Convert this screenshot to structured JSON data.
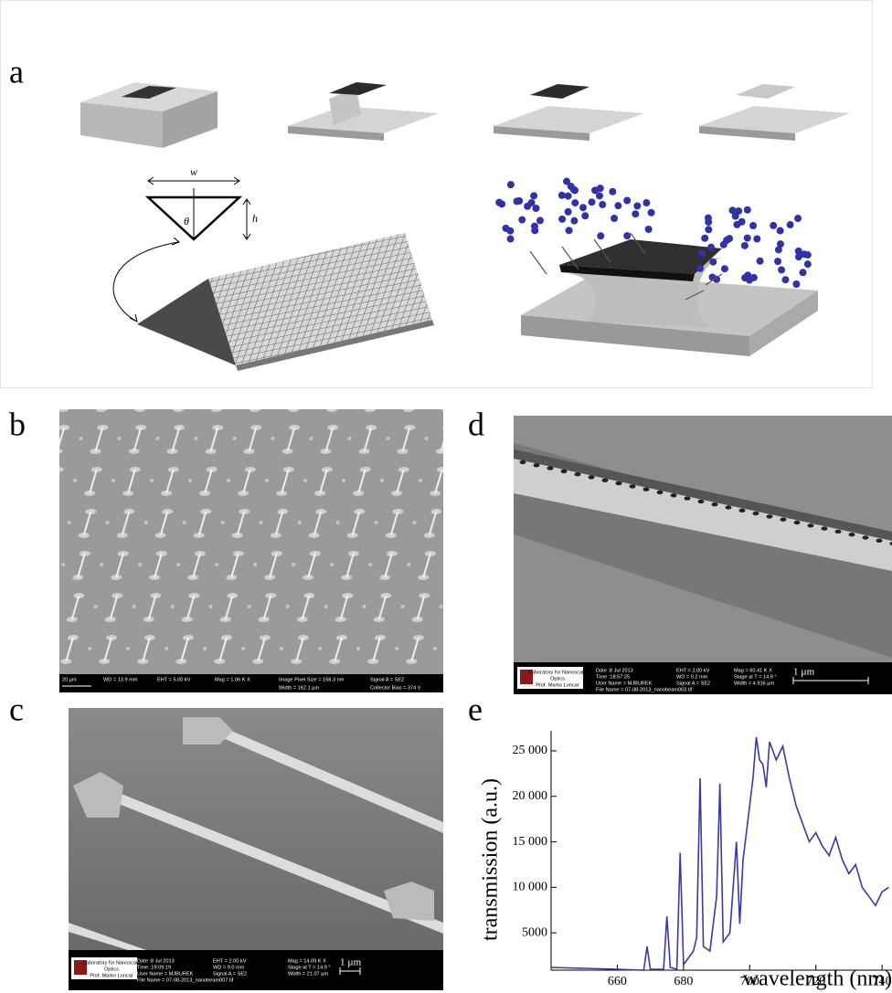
{
  "panels": {
    "a": "a",
    "b": "b",
    "c": "c",
    "d": "d",
    "e": "e"
  },
  "diagram": {
    "width_label": "w",
    "height_label": "h",
    "angle_label": "θ"
  },
  "sem_b": {
    "scale": "20 µm",
    "fields": [
      "WD = 13.9 mm",
      "EHT = 5.00 kV",
      "Mag = 1.06 K X",
      "Image Pixel Size = 158.3 nm",
      "Signal A = SE2",
      "Width = 162.1 µm",
      "Collector Bias = 374 V"
    ]
  },
  "sem_d": {
    "logo": [
      "Laboratory for Nanoscale",
      "Optics",
      "Prof. Marko Loncar"
    ],
    "columns": [
      [
        "Date :8 Jul 2013",
        "Time :18:57:25",
        "User Name = MJBUREK",
        "File Name = 07-08-2013_nanobeam003.tif"
      ],
      [
        "EHT = 2.00 kV",
        "WD = 9.2 mm",
        "Signal A = SE2"
      ],
      [
        "Mag = 60.41 K X",
        "Stage at T = 14.9 °",
        "Width = 4.916 µm"
      ]
    ],
    "scale": "1 µm"
  },
  "sem_c": {
    "logo": [
      "Laboratory for Nanoscale",
      "Optics",
      "Prof. Marko Loncar"
    ],
    "columns": [
      [
        "Date :8 Jul 2013",
        "Time :19:09:19",
        "User Name = MJBUREK",
        "File Name = 07-08-2013_nanobeam007.tif"
      ],
      [
        "EHT = 2.00 kV",
        "WD = 9.0 mm",
        "Signal A = SE2"
      ],
      [
        "Mag = 14.09 K X",
        "Stage at T = 14.9 °",
        "Width = 21.07 µm"
      ]
    ],
    "scale": "1 µm"
  },
  "chart_data": {
    "type": "line",
    "x_label": "wavelength (nm)",
    "y_label": "transmission (a.u.)",
    "color": "#3b3b9e",
    "x": [
      640,
      660,
      668,
      669,
      670,
      674,
      675,
      676,
      678,
      679,
      680,
      683,
      684,
      685,
      686,
      688,
      690,
      691,
      692,
      694,
      696,
      697,
      698,
      700,
      701,
      702,
      703,
      704,
      705,
      706,
      708,
      710,
      712,
      714,
      716,
      718,
      720,
      722,
      724,
      726,
      728,
      730,
      732,
      734,
      736,
      738,
      740,
      742
    ],
    "values": [
      1200,
      1000,
      900,
      3500,
      1000,
      1000,
      6800,
      1200,
      1000,
      13800,
      1500,
      3000,
      4500,
      22000,
      3500,
      3000,
      9000,
      21400,
      4000,
      5000,
      15000,
      6000,
      13000,
      19000,
      22000,
      26500,
      24000,
      23500,
      21000,
      26000,
      24000,
      25500,
      22000,
      19000,
      17000,
      15000,
      16000,
      14500,
      13500,
      15500,
      13000,
      11500,
      12500,
      10000,
      9000,
      8000,
      9500,
      10000
    ],
    "xlim": [
      640,
      743
    ],
    "ylim": [
      900,
      27200
    ],
    "xticks": [
      660,
      680,
      700,
      720,
      740
    ],
    "yticks": [
      5000,
      {
        "value": 10000,
        "label": "10 000"
      },
      {
        "value": 15000,
        "label": "15 000"
      },
      {
        "value": 20000,
        "label": "20 000"
      },
      {
        "value": 25000,
        "label": "25 000"
      }
    ]
  }
}
